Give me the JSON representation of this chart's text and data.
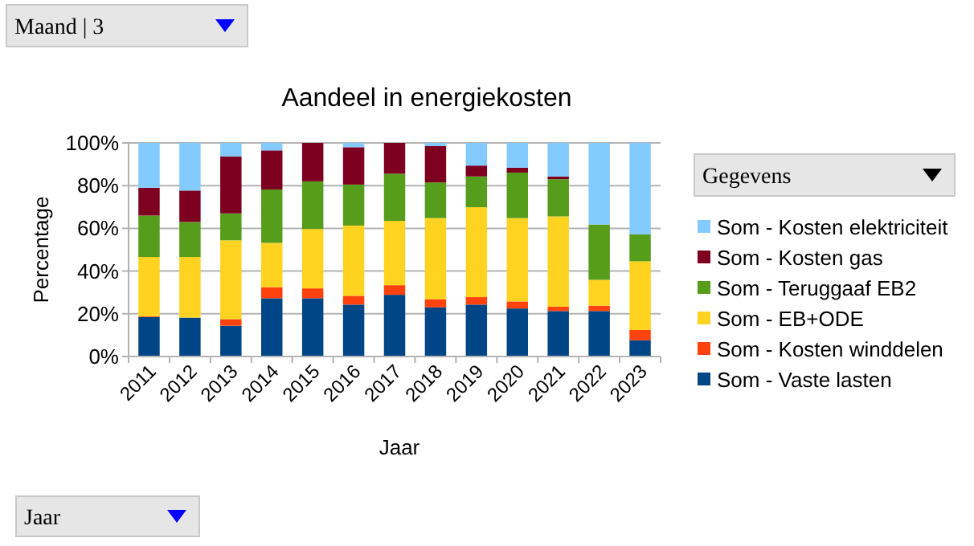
{
  "chart_data": {
    "type": "bar",
    "title": "Aandeel in energiekosten",
    "xlabel": "Jaar",
    "ylabel": "Percentage",
    "stacked": true,
    "grid": "y",
    "legend": "right",
    "categories": [
      "2011",
      "2012",
      "2013",
      "2014",
      "2015",
      "2016",
      "2017",
      "2018",
      "2019",
      "2020",
      "2021",
      "2022",
      "2023"
    ],
    "ylim": [
      0,
      100
    ],
    "yticks": [
      {
        "value": 0,
        "label": "0%"
      },
      {
        "value": 20,
        "label": "20%"
      },
      {
        "value": 40,
        "label": "40%"
      },
      {
        "value": 60,
        "label": "60%"
      },
      {
        "value": 80,
        "label": "80%"
      },
      {
        "value": 100,
        "label": "100%"
      }
    ],
    "series": [
      {
        "name": "Som - Vaste lasten",
        "color": "#004586",
        "values": [
          18.5,
          18.2,
          14.4,
          27.3,
          27.3,
          24.3,
          28.9,
          23,
          24.3,
          22.5,
          21.3,
          21.3,
          7.6
        ]
      },
      {
        "name": "Som - Kosten winddelen",
        "color": "#ff420e",
        "values": [
          0.3,
          0,
          3.1,
          5.1,
          4.6,
          4.1,
          4.5,
          3.8,
          3.5,
          3.3,
          2,
          2.5,
          4.8
        ]
      },
      {
        "name": "Som - EB+ODE",
        "color": "#ffd320",
        "values": [
          27.8,
          28.4,
          36.9,
          20.8,
          27.8,
          32.9,
          30.1,
          38,
          42.1,
          39,
          42.3,
          12.1,
          32.2
        ]
      },
      {
        "name": "Som - Teruggaaf EB2",
        "color": "#579d1c",
        "values": [
          19.4,
          16.4,
          12.6,
          25,
          22.3,
          19.2,
          22.1,
          16.7,
          14.4,
          21.3,
          17.4,
          25.9,
          12.6
        ]
      },
      {
        "name": "Som - Kosten gas",
        "color": "#7e0021",
        "values": [
          13,
          14.7,
          26.7,
          18.3,
          18,
          17.5,
          14.4,
          17,
          5.1,
          2.3,
          1.3,
          0,
          0
        ]
      },
      {
        "name": "Som - Kosten elektriciteit",
        "color": "#83caff",
        "values": [
          21,
          22.3,
          6.3,
          3.5,
          0,
          2,
          0,
          1.5,
          10.6,
          11.6,
          15.7,
          38.2,
          42.8
        ]
      }
    ],
    "annotations": [
      "Maand | 3",
      "Gegevens",
      "Jaar"
    ]
  }
}
